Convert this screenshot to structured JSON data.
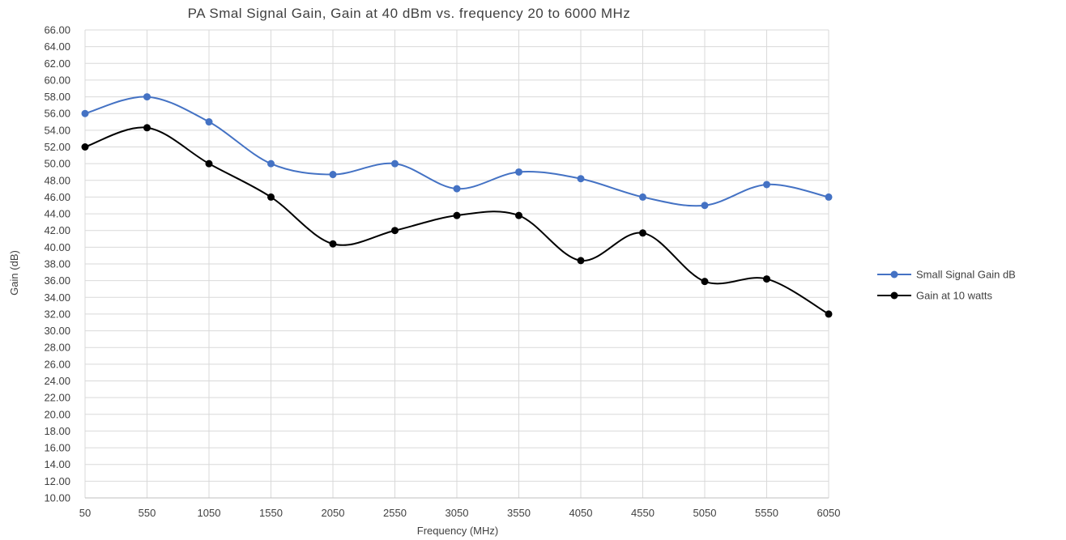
{
  "chart_data": {
    "type": "line",
    "title": "PA Smal Signal Gain, Gain at 40 dBm vs. frequency 20 to 6000 MHz",
    "xlabel": "Frequency (MHz)",
    "ylabel": "Gain (dB)",
    "categories": [
      "50",
      "550",
      "1050",
      "1550",
      "2050",
      "2550",
      "3050",
      "3550",
      "4050",
      "4550",
      "5050",
      "5550",
      "6050"
    ],
    "ylim": [
      10,
      66
    ],
    "ytick_step": 2,
    "yticks": [
      "10.00",
      "12.00",
      "14.00",
      "16.00",
      "18.00",
      "20.00",
      "22.00",
      "24.00",
      "26.00",
      "28.00",
      "30.00",
      "32.00",
      "34.00",
      "36.00",
      "38.00",
      "40.00",
      "42.00",
      "44.00",
      "46.00",
      "48.00",
      "50.00",
      "52.00",
      "54.00",
      "56.00",
      "58.00",
      "60.00",
      "62.00",
      "64.00",
      "66.00"
    ],
    "grid": true,
    "smooth": true,
    "legend_position": "right",
    "series": [
      {
        "name": "Small Signal Gain dB",
        "color": "#4472C4",
        "values": [
          56.0,
          58.0,
          55.0,
          50.0,
          48.7,
          50.0,
          47.0,
          49.0,
          48.2,
          46.0,
          45.0,
          47.5,
          46.0
        ]
      },
      {
        "name": "Gain at 10 watts",
        "color": "#000000",
        "values": [
          52.0,
          54.3,
          50.0,
          46.0,
          40.4,
          42.0,
          43.8,
          43.8,
          38.4,
          41.7,
          35.9,
          36.2,
          32.0
        ]
      }
    ]
  }
}
